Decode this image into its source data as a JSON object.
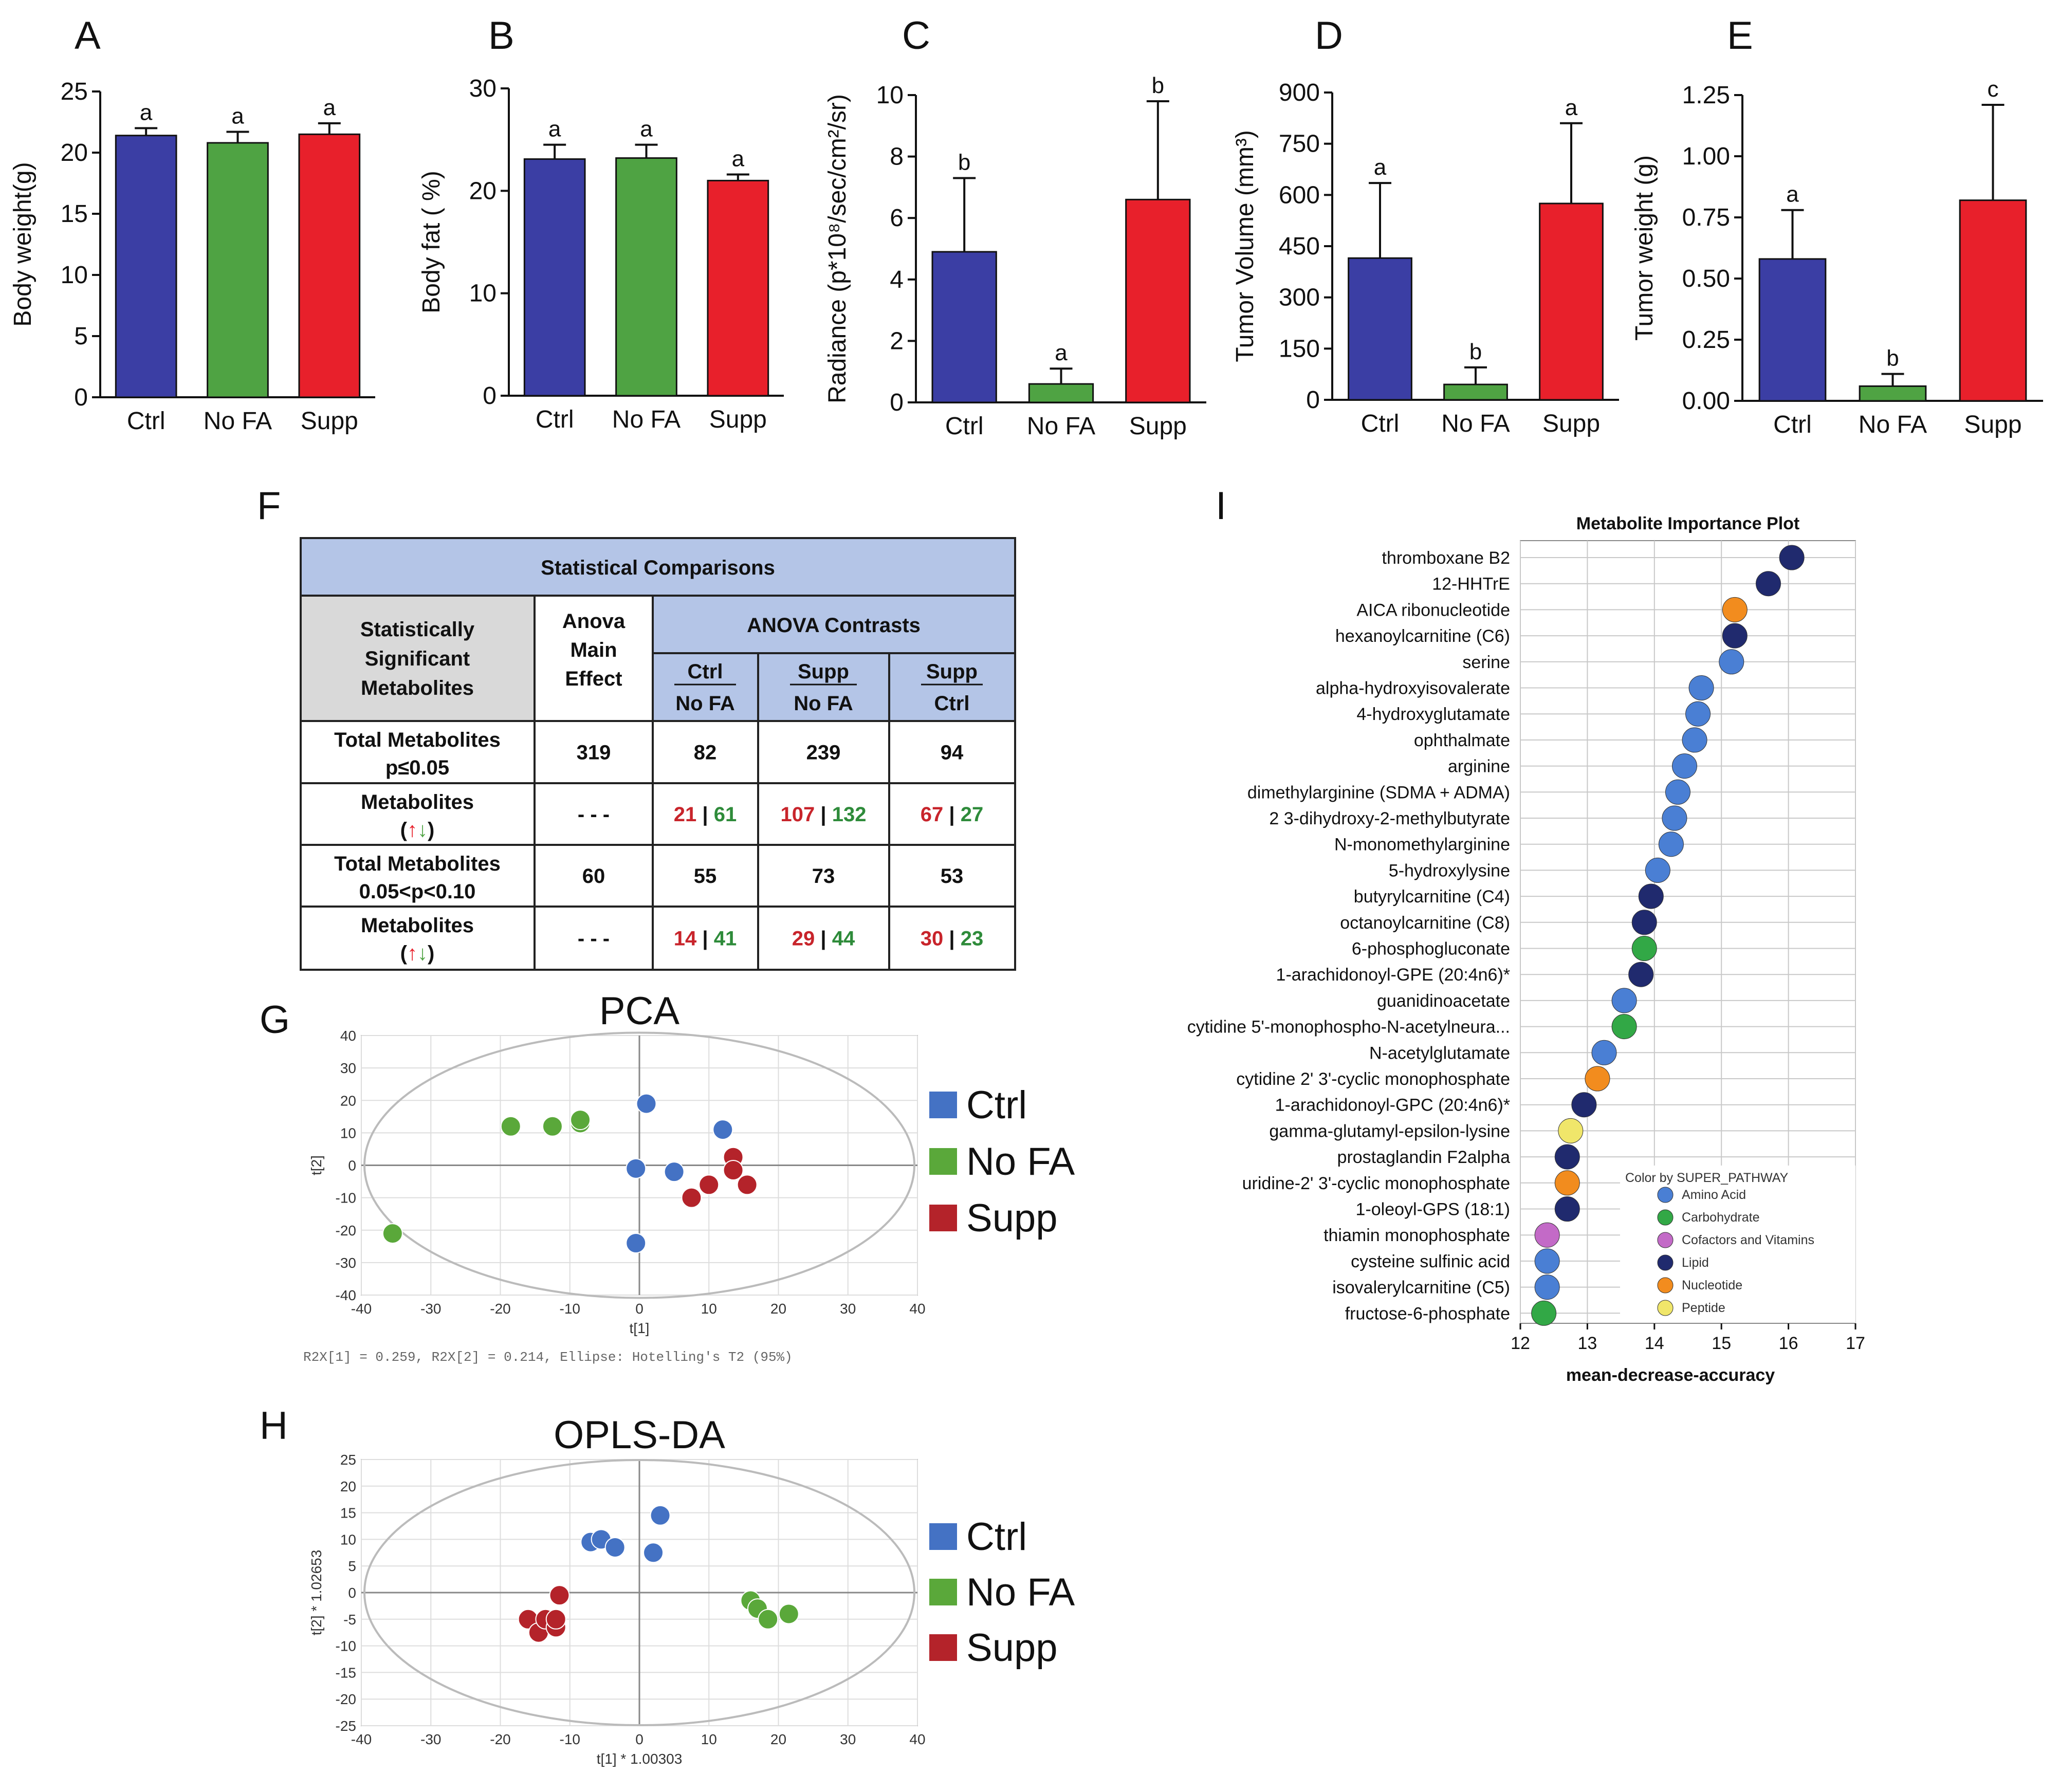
{
  "colors": {
    "ctrl": "#3b3ea4",
    "nofa": "#4fa343",
    "supp": "#e8202b",
    "pt_ctrl": "#4472c4",
    "pt_nofa": "#5aa83a",
    "pt_supp": "#b4232a",
    "amino": "#4a7fd4",
    "carb": "#32a846",
    "cofactor": "#c36ac7",
    "lipid": "#202a6e",
    "nucleotide": "#f28c1e",
    "peptide": "#f0e66a",
    "table_header": "#b4c5e7",
    "table_grey": "#d9d9d9"
  },
  "panel_letters": [
    "A",
    "B",
    "C",
    "D",
    "E",
    "F",
    "G",
    "H",
    "I"
  ],
  "chart_data": [
    {
      "id": "A",
      "type": "bar",
      "categories": [
        "Ctrl",
        "No FA",
        "Supp"
      ],
      "values": [
        21.4,
        20.8,
        21.5
      ],
      "errors": [
        0.6,
        0.9,
        0.9
      ],
      "sig": [
        "a",
        "a",
        "a"
      ],
      "ylabel": "Body weight(g)",
      "ylim": [
        0,
        25
      ],
      "yticks": [
        "0",
        "5",
        "10",
        "15",
        "20",
        "25"
      ]
    },
    {
      "id": "B",
      "type": "bar",
      "categories": [
        "Ctrl",
        "No FA",
        "Supp"
      ],
      "values": [
        23.1,
        23.2,
        21.0
      ],
      "errors": [
        1.4,
        1.3,
        0.6
      ],
      "sig": [
        "a",
        "a",
        "a"
      ],
      "ylabel": "Body fat ( %)",
      "ylim": [
        0,
        30
      ],
      "yticks": [
        "0",
        "10",
        "20",
        "30"
      ]
    },
    {
      "id": "C",
      "type": "bar",
      "categories": [
        "Ctrl",
        "No FA",
        "Supp"
      ],
      "values": [
        4.9,
        0.6,
        6.6
      ],
      "errors": [
        2.4,
        0.5,
        3.2
      ],
      "sig": [
        "b",
        "a",
        "b"
      ],
      "ylabel": "Radiance (p*10⁸/sec/cm²/sr)",
      "ylim": [
        0,
        10
      ],
      "yticks": [
        "0",
        "2",
        "4",
        "6",
        "8",
        "10"
      ]
    },
    {
      "id": "D",
      "type": "bar",
      "categories": [
        "Ctrl",
        "No FA",
        "Supp"
      ],
      "values": [
        415,
        45,
        575
      ],
      "errors": [
        220,
        50,
        235
      ],
      "sig": [
        "a",
        "b",
        "a"
      ],
      "ylabel": "Tumor Volume (mm³)",
      "ylim": [
        0,
        900
      ],
      "yticks": [
        "0",
        "150",
        "300",
        "450",
        "600",
        "750",
        "900"
      ]
    },
    {
      "id": "E",
      "type": "bar",
      "categories": [
        "Ctrl",
        "No FA",
        "Supp"
      ],
      "values": [
        0.58,
        0.06,
        0.82
      ],
      "errors": [
        0.2,
        0.05,
        0.39
      ],
      "sig": [
        "a",
        "b",
        "c"
      ],
      "ylabel": "Tumor weight (g)",
      "ylim": [
        0,
        1.25
      ],
      "yticks": [
        "0.00",
        "0.25",
        "0.50",
        "0.75",
        "1.00",
        "1.25"
      ]
    },
    {
      "id": "G",
      "type": "scatter",
      "title": "PCA",
      "xlabel": "t[1]",
      "ylabel": "t[2]",
      "xlim": [
        -40,
        40
      ],
      "ylim": [
        -40,
        40
      ],
      "xticks": [
        "-40",
        "-30",
        "-20",
        "-10",
        "0",
        "10",
        "20",
        "30",
        "40"
      ],
      "yticks": [
        "-40",
        "-30",
        "-20",
        "-10",
        "0",
        "10",
        "20",
        "30",
        "40"
      ],
      "footnote": "R2X[1] = 0.259, R2X[2] = 0.214, Ellipse: Hotelling's T2 (95%)",
      "series": [
        {
          "name": "Ctrl",
          "points": [
            [
              1,
              19
            ],
            [
              -0.5,
              -1
            ],
            [
              5,
              -2
            ],
            [
              12,
              11
            ],
            [
              -0.5,
              -24
            ]
          ]
        },
        {
          "name": "No FA",
          "points": [
            [
              -18.5,
              12
            ],
            [
              -12.5,
              12
            ],
            [
              -8.5,
              13
            ],
            [
              -8.5,
              14
            ],
            [
              -35.5,
              -21
            ]
          ]
        },
        {
          "name": "Supp",
          "points": [
            [
              13.5,
              2.5
            ],
            [
              13.5,
              -1.5
            ],
            [
              15.5,
              -6
            ],
            [
              10,
              -6
            ],
            [
              7.5,
              -10
            ]
          ]
        }
      ]
    },
    {
      "id": "H",
      "type": "scatter",
      "title": "OPLS-DA",
      "xlabel": "t[1] * 1.00303",
      "ylabel": "t[2] * 1.02653",
      "xlim": [
        -40,
        40
      ],
      "ylim": [
        -25,
        25
      ],
      "xticks": [
        "-40",
        "-30",
        "-20",
        "-10",
        "0",
        "10",
        "20",
        "30",
        "40"
      ],
      "yticks": [
        "-25",
        "-20",
        "-15",
        "-10",
        "-5",
        "0",
        "5",
        "10",
        "15",
        "20",
        "25"
      ],
      "series": [
        {
          "name": "Ctrl",
          "points": [
            [
              -7,
              9.5
            ],
            [
              -5.5,
              10
            ],
            [
              -3.5,
              8.5
            ],
            [
              3,
              14.5
            ],
            [
              2,
              7.5
            ]
          ]
        },
        {
          "name": "No FA",
          "points": [
            [
              16,
              -1.5
            ],
            [
              17,
              -3
            ],
            [
              18.5,
              -5
            ],
            [
              21.5,
              -4
            ]
          ]
        },
        {
          "name": "Supp",
          "points": [
            [
              -11.5,
              -0.5
            ],
            [
              -16,
              -5
            ],
            [
              -14.5,
              -7.5
            ],
            [
              -13.5,
              -5
            ],
            [
              -12,
              -6.5
            ],
            [
              -12,
              -5
            ]
          ]
        }
      ]
    },
    {
      "id": "I",
      "type": "scatter",
      "title": "Metabolite Importance Plot",
      "xlabel": "mean-decrease-accuracy",
      "xlim": [
        12,
        17
      ],
      "xticks": [
        "12",
        "13",
        "14",
        "15",
        "16",
        "17"
      ],
      "legend_title": "Color by SUPER_PATHWAY",
      "legend": [
        {
          "name": "Amino Acid",
          "key": "amino"
        },
        {
          "name": "Carbohydrate",
          "key": "carb"
        },
        {
          "name": "Cofactors and Vitamins",
          "key": "cofactor"
        },
        {
          "name": "Lipid",
          "key": "lipid"
        },
        {
          "name": "Nucleotide",
          "key": "nucleotide"
        },
        {
          "name": "Peptide",
          "key": "peptide"
        }
      ],
      "items": [
        {
          "name": "thromboxane B2",
          "value": 16.05,
          "pathway": "lipid"
        },
        {
          "name": "12-HHTrE",
          "value": 15.7,
          "pathway": "lipid"
        },
        {
          "name": "AICA ribonucleotide",
          "value": 15.2,
          "pathway": "nucleotide"
        },
        {
          "name": "hexanoylcarnitine (C6)",
          "value": 15.2,
          "pathway": "lipid"
        },
        {
          "name": "serine",
          "value": 15.15,
          "pathway": "amino"
        },
        {
          "name": "alpha-hydroxyisovalerate",
          "value": 14.7,
          "pathway": "amino"
        },
        {
          "name": "4-hydroxyglutamate",
          "value": 14.65,
          "pathway": "amino"
        },
        {
          "name": "ophthalmate",
          "value": 14.6,
          "pathway": "amino"
        },
        {
          "name": "arginine",
          "value": 14.45,
          "pathway": "amino"
        },
        {
          "name": "dimethylarginine (SDMA + ADMA)",
          "value": 14.35,
          "pathway": "amino"
        },
        {
          "name": "2 3-dihydroxy-2-methylbutyrate",
          "value": 14.3,
          "pathway": "amino"
        },
        {
          "name": "N-monomethylarginine",
          "value": 14.25,
          "pathway": "amino"
        },
        {
          "name": "5-hydroxylysine",
          "value": 14.05,
          "pathway": "amino"
        },
        {
          "name": "butyrylcarnitine (C4)",
          "value": 13.95,
          "pathway": "lipid"
        },
        {
          "name": "octanoylcarnitine (C8)",
          "value": 13.85,
          "pathway": "lipid"
        },
        {
          "name": "6-phosphogluconate",
          "value": 13.85,
          "pathway": "carb"
        },
        {
          "name": "1-arachidonoyl-GPE (20:4n6)*",
          "value": 13.8,
          "pathway": "lipid"
        },
        {
          "name": "guanidinoacetate",
          "value": 13.55,
          "pathway": "amino"
        },
        {
          "name": "cytidine 5'-monophospho-N-acetylneura...",
          "value": 13.55,
          "pathway": "carb"
        },
        {
          "name": "N-acetylglutamate",
          "value": 13.25,
          "pathway": "amino"
        },
        {
          "name": "cytidine 2' 3'-cyclic monophosphate",
          "value": 13.15,
          "pathway": "nucleotide"
        },
        {
          "name": "1-arachidonoyl-GPC (20:4n6)*",
          "value": 12.95,
          "pathway": "lipid"
        },
        {
          "name": "gamma-glutamyl-epsilon-lysine",
          "value": 12.75,
          "pathway": "peptide"
        },
        {
          "name": "prostaglandin F2alpha",
          "value": 12.7,
          "pathway": "lipid"
        },
        {
          "name": "uridine-2' 3'-cyclic monophosphate",
          "value": 12.7,
          "pathway": "nucleotide"
        },
        {
          "name": "1-oleoyl-GPS (18:1)",
          "value": 12.7,
          "pathway": "lipid"
        },
        {
          "name": "thiamin monophosphate",
          "value": 12.4,
          "pathway": "cofactor"
        },
        {
          "name": "cysteine sulfinic acid",
          "value": 12.4,
          "pathway": "amino"
        },
        {
          "name": "isovalerylcarnitine (C5)",
          "value": 12.4,
          "pathway": "amino"
        },
        {
          "name": "fructose-6-phosphate",
          "value": 12.35,
          "pathway": "carb"
        }
      ]
    }
  ],
  "table": {
    "title": "Statistical Comparisons",
    "header_left": [
      "Statistically",
      "Significant",
      "Metabolites"
    ],
    "header_anova": [
      "Anova",
      "Main",
      "Effect"
    ],
    "header_contrasts": "ANOVA Contrasts",
    "contrast_cols": [
      {
        "top": "Ctrl",
        "bottom": "No FA"
      },
      {
        "top": "Supp",
        "bottom": "No FA"
      },
      {
        "top": "Supp",
        "bottom": "Ctrl"
      }
    ],
    "rows": [
      {
        "label1": "Total Metabolites",
        "label2": "p≤0.05",
        "anova": "319",
        "cells": [
          "82",
          "239",
          "94"
        ]
      },
      {
        "label1": "Metabolites",
        "label2": "(↑↓)",
        "anova": "- - -",
        "up": [
          "21",
          "107",
          "67"
        ],
        "down": [
          "61",
          "132",
          "27"
        ]
      },
      {
        "label1": "Total Metabolites",
        "label2": "0.05<p<0.10",
        "anova": "60",
        "cells": [
          "55",
          "73",
          "53"
        ]
      },
      {
        "label1": "Metabolites",
        "label2": "(↑↓)",
        "anova": "- - -",
        "up": [
          "14",
          "29",
          "30"
        ],
        "down": [
          "41",
          "44",
          "23"
        ]
      }
    ],
    "separator": "|"
  },
  "scatter_legend": [
    "Ctrl",
    "No FA",
    "Supp"
  ]
}
